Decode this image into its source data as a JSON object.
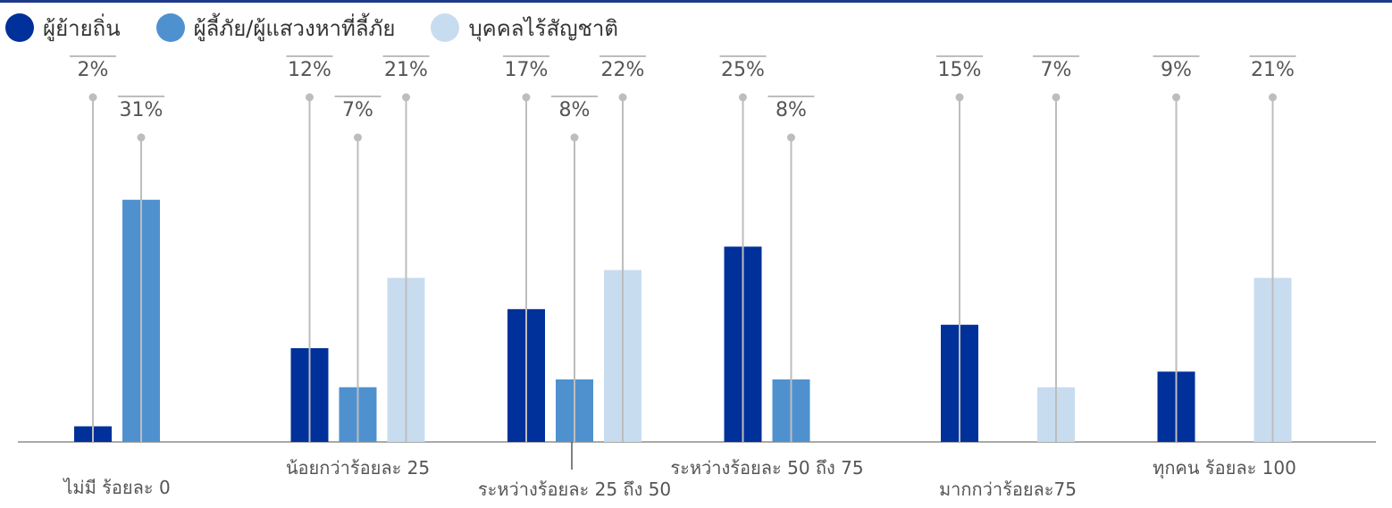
{
  "colors": {
    "migrants": "#00309A",
    "refugees": "#4F91CF",
    "stateless": "#C8DCF0",
    "leader": "#BDBDBD",
    "axis": "#A9A9A9",
    "text": "#555555",
    "top_rule": "#1F3A8A"
  },
  "chart_data": {
    "type": "bar",
    "title": "",
    "xlabel": "",
    "ylabel": "",
    "ylim": [
      0,
      36
    ],
    "grid": false,
    "legend_position": "top-left",
    "categories": [
      "ไม่มี ร้อยละ 0",
      "น้อยกว่าร้อยละ 25",
      "ระหว่างร้อยละ 25 ถึง 50",
      "ระหว่างร้อยละ 50 ถึง 75",
      "มากกว่าร้อยละ75",
      "ทุกคน ร้อยละ 100"
    ],
    "series": [
      {
        "name": "ผู้ย้ายถิ่น",
        "color_key": "migrants",
        "values": [
          2,
          12,
          17,
          25,
          15,
          9
        ],
        "labels": [
          "2%",
          "12%",
          "17%",
          "25%",
          "15%",
          "9%"
        ]
      },
      {
        "name": "ผู้ลี้ภัย/ผู้แสวงหาที่ลี้ภัย",
        "color_key": "refugees",
        "values": [
          31,
          7,
          8,
          8,
          null,
          null
        ],
        "labels": [
          "31%",
          "7%",
          "8%",
          "8%",
          "",
          ""
        ]
      },
      {
        "name": "บุคคลไร้สัญชาติ",
        "color_key": "stateless",
        "values": [
          null,
          21,
          22,
          null,
          7,
          21
        ],
        "labels": [
          "",
          "21%",
          "22%",
          "",
          "7%",
          "21%"
        ]
      }
    ]
  }
}
